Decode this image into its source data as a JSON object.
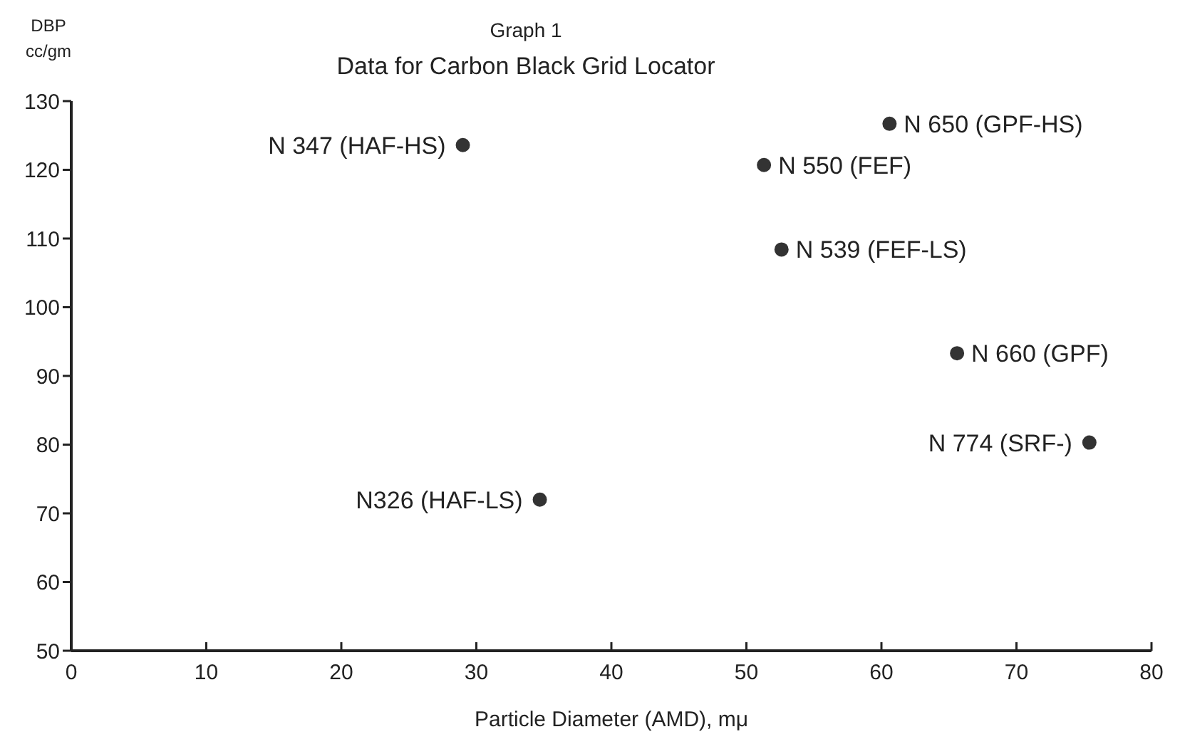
{
  "chart_data": {
    "type": "scatter",
    "title": "Data for Carbon Black Grid Locator",
    "subtitle": "Graph 1",
    "xlabel": "Particle Diameter (AMD), mμ",
    "ylabel": "DBP\ncc/gm",
    "x": [
      29.0,
      60.6,
      51.3,
      52.6,
      65.6,
      75.4,
      34.7
    ],
    "series": [
      {
        "color": "#333333",
        "values": [
          123.6,
          126.7,
          120.7,
          108.4,
          93.3,
          80.3,
          72.0
        ]
      }
    ],
    "marker": "circle",
    "grid": false,
    "xlim": [
      0,
      80
    ],
    "xticks": [
      0,
      10,
      20,
      30,
      40,
      50,
      60,
      70,
      80
    ],
    "ylim": [
      50,
      130
    ],
    "yticks": [
      50,
      60,
      70,
      80,
      90,
      100,
      110,
      120,
      130
    ],
    "annotations": [
      {
        "text": "N 347 (HAF-HS)",
        "x": 29.0,
        "y": 123.6
      },
      {
        "text": "N 650 (GPF-HS)",
        "x": 60.6,
        "y": 126.7
      },
      {
        "text": "N 550 (FEF)",
        "x": 51.3,
        "y": 120.7
      },
      {
        "text": "N 539 (FEF-LS)",
        "x": 52.6,
        "y": 108.4
      },
      {
        "text": "N 660 (GPF)",
        "x": 65.6,
        "y": 93.3
      },
      {
        "text": "N 774 (SRF-)",
        "x": 75.4,
        "y": 80.3
      },
      {
        "text": "N326 (HAF-LS)",
        "x": 34.7,
        "y": 72.0
      }
    ]
  }
}
